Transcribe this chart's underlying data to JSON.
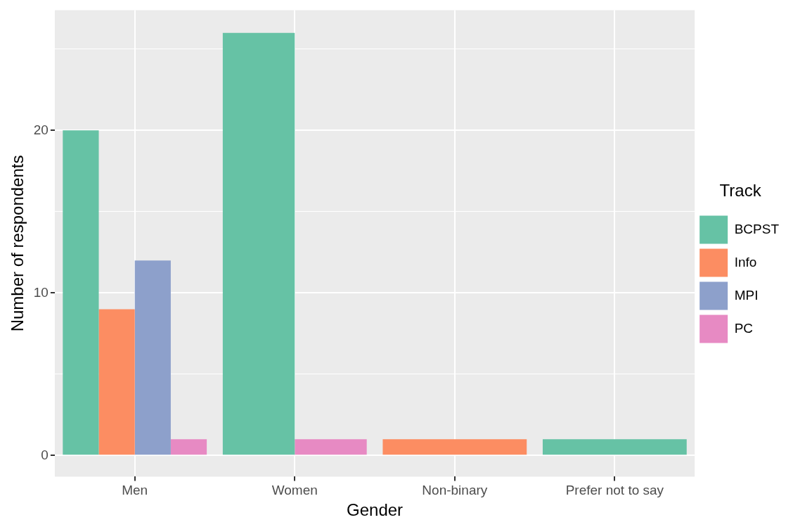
{
  "chart_data": {
    "type": "bar",
    "xlabel": "Gender",
    "ylabel": "Number of respondents",
    "legend_title": "Track",
    "categories": [
      "Men",
      "Women",
      "Non-binary",
      "Prefer not to say"
    ],
    "series": [
      {
        "name": "BCPST",
        "color": "#66c2a5",
        "values": [
          20,
          26,
          null,
          1
        ]
      },
      {
        "name": "Info",
        "color": "#fc8d62",
        "values": [
          9,
          null,
          1,
          null
        ]
      },
      {
        "name": "MPI",
        "color": "#8da0cb",
        "values": [
          12,
          null,
          null,
          null
        ]
      },
      {
        "name": "PC",
        "color": "#e78ac3",
        "values": [
          1,
          1,
          null,
          null
        ]
      }
    ],
    "ylim": [
      -1.3,
      27.4
    ],
    "yticks": [
      {
        "value": 0,
        "label": "0"
      },
      {
        "value": 5,
        "label": null
      },
      {
        "value": 10,
        "label": "10"
      },
      {
        "value": 15,
        "label": null
      },
      {
        "value": 20,
        "label": "20"
      },
      {
        "value": 25,
        "label": null
      }
    ],
    "grid": true,
    "legend": "right"
  }
}
